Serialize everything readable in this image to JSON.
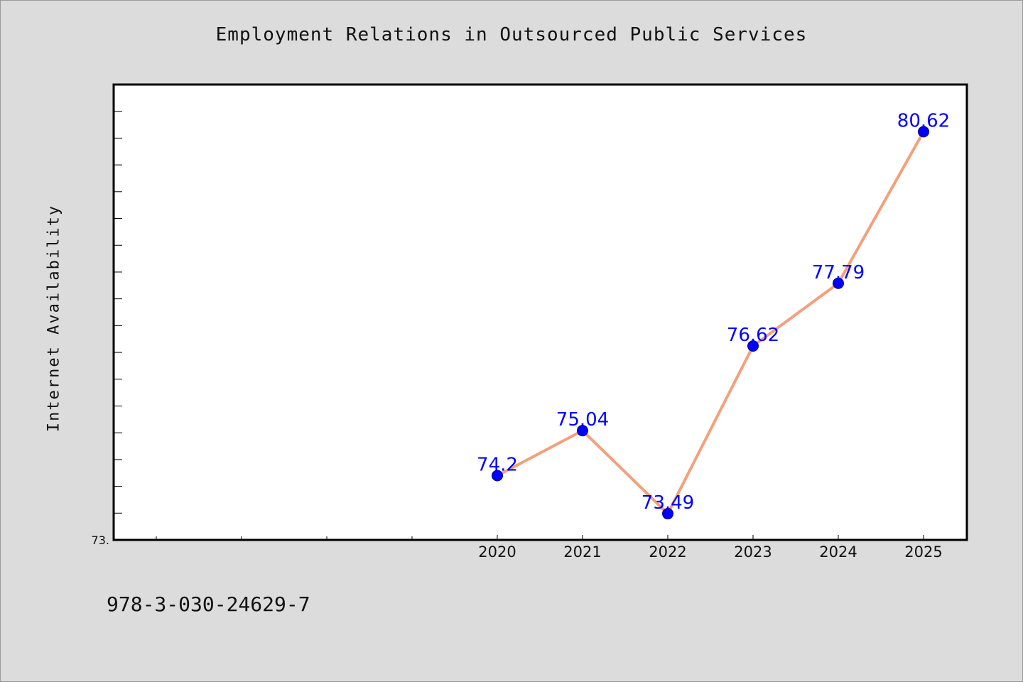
{
  "chart_data": {
    "type": "line",
    "title": "Employment Relations in Outsourced Public Services",
    "xlabel": "",
    "ylabel": "Internet Availability",
    "categories": [
      "2020",
      "2021",
      "2022",
      "2023",
      "2024",
      "2025"
    ],
    "series": [
      {
        "values": [
          74.2,
          75.04,
          73.49,
          76.62,
          77.79,
          80.62
        ],
        "data_labels": [
          "74.2",
          "75.04",
          "73.49",
          "76.62",
          "77.79",
          "80.62"
        ]
      }
    ],
    "ylim": [
      73.0,
      81.5
    ],
    "y_axis_min_label": "73.",
    "line_color": "#f4a07c",
    "marker_color": "#0000ff",
    "label_color": "#0000ff",
    "grid": false,
    "legend": "none"
  },
  "footer": {
    "isbn": "978-3-030-24629-7"
  }
}
